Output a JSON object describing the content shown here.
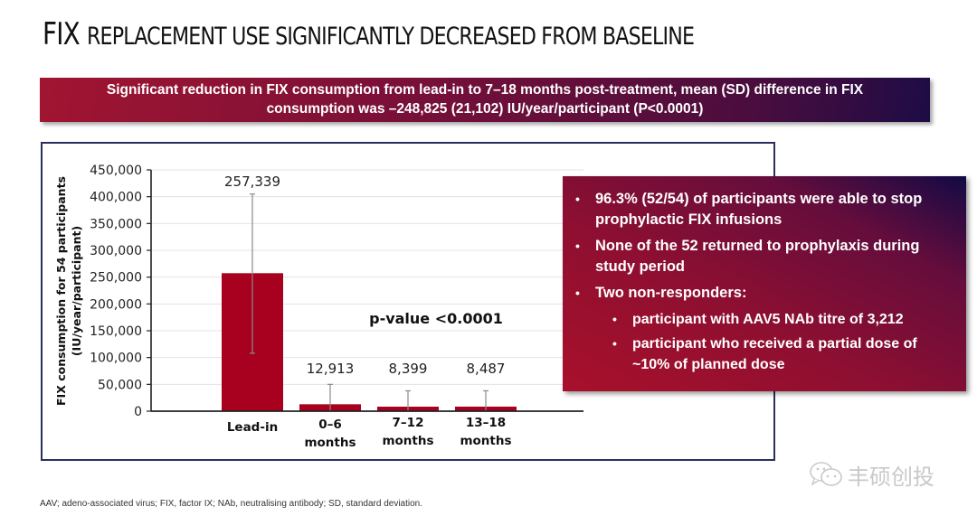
{
  "title": {
    "lead": "FIX",
    "rest": "REPLACEMENT USE SIGNIFICANTLY DECREASED FROM BASELINE"
  },
  "banner": {
    "line1": "Significant reduction in FIX consumption from lead-in to 7–18 months post-treatment, mean (SD) difference in FIX",
    "line2": "consumption was –248,825 (21,102) IU/year/participant (P<0.0001)"
  },
  "chart_data": {
    "type": "bar",
    "title": "",
    "xlabel": "",
    "ylabel_line1": "FIX consumption for 54 participants",
    "ylabel_line2": "(IU/year/participant)",
    "categories": [
      {
        "line1": "Lead-in",
        "line2": ""
      },
      {
        "line1": "0–6",
        "line2": "months"
      },
      {
        "line1": "7–12",
        "line2": "months"
      },
      {
        "line1": "13–18",
        "line2": "months"
      }
    ],
    "values": [
      257339,
      12913,
      8399,
      8487
    ],
    "value_labels": [
      "257,339",
      "12,913",
      "8,399",
      "8,487"
    ],
    "error_upper": [
      405000,
      50000,
      38000,
      38000
    ],
    "error_lower": [
      108000,
      0,
      0,
      0
    ],
    "ylim": [
      0,
      450000
    ],
    "yticks": [
      0,
      50000,
      100000,
      150000,
      200000,
      250000,
      300000,
      350000,
      400000,
      450000
    ],
    "ytick_labels": [
      "0",
      "50,000",
      "100,000",
      "150,000",
      "200,000",
      "250,000",
      "300,000",
      "350,000",
      "400,000",
      "450,000"
    ],
    "grid": true,
    "bar_color": "#a8001f",
    "annotation": "p-value <0.0001"
  },
  "info_box": {
    "items": [
      {
        "text": "96.3% (52/54) of participants were able to stop prophylactic FIX infusions",
        "level": 1
      },
      {
        "text": "None of the 52 returned to prophylaxis during study period",
        "level": 1
      },
      {
        "text": "Two non-responders:",
        "level": 1
      },
      {
        "text": "participant with AAV5 NAb titre of 3,212",
        "level": 2
      },
      {
        "text": "participant who received a partial dose of ~10% of planned dose",
        "level": 2
      }
    ],
    "bullet": "•"
  },
  "watermark": {
    "text": "丰硕创投",
    "icon": "wechat-icon"
  },
  "footnote": "AAV; adeno-associated virus; FIX, factor IX; NAb, neutralising antibody; SD, standard deviation."
}
